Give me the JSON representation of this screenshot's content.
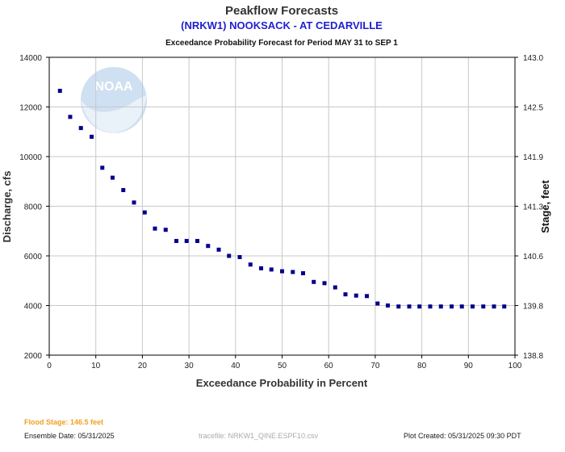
{
  "chart_data": {
    "type": "scatter",
    "title": "Peakflow Forecasts",
    "subtitle": "(NRKW1) NOOKSACK - AT CEDARVILLE",
    "period": "Exceedance Probability Forecast for Period MAY 31 to SEP 1",
    "xlabel": "Exceedance Probability in Percent",
    "ylabel": "Discharge, cfs",
    "y2label": "Stage, feet",
    "xlim": [
      0,
      100
    ],
    "ylim": [
      2000,
      14000
    ],
    "y2lim": [
      138.8,
      143.0
    ],
    "xticks": [
      0,
      10,
      20,
      30,
      40,
      50,
      60,
      70,
      80,
      90,
      100
    ],
    "yticks": [
      2000,
      4000,
      6000,
      8000,
      10000,
      12000,
      14000
    ],
    "y2ticks": [
      "138.8",
      "139.8",
      "140.6",
      "141.3",
      "141.9",
      "142.5",
      "143.0"
    ],
    "grid": true,
    "marker_color": "#00008b",
    "x": [
      2.3,
      4.5,
      6.8,
      9.1,
      11.4,
      13.6,
      15.9,
      18.2,
      20.5,
      22.7,
      25.0,
      27.3,
      29.5,
      31.8,
      34.1,
      36.4,
      38.6,
      40.9,
      43.2,
      45.5,
      47.7,
      50.0,
      52.3,
      54.5,
      56.8,
      59.1,
      61.4,
      63.6,
      65.9,
      68.2,
      70.5,
      72.7,
      75.0,
      77.3,
      79.5,
      81.8,
      84.1,
      86.4,
      88.6,
      90.9,
      93.2,
      95.5,
      97.7
    ],
    "y": [
      12650,
      11600,
      11150,
      10800,
      9550,
      9150,
      8650,
      8150,
      7750,
      7100,
      7050,
      6600,
      6600,
      6600,
      6400,
      6250,
      6000,
      5950,
      5650,
      5500,
      5450,
      5380,
      5350,
      5300,
      4950,
      4900,
      4730,
      4450,
      4400,
      4380,
      4080,
      4000,
      3960,
      3960,
      3960,
      3960,
      3960,
      3960,
      3960,
      3960,
      3960,
      3960,
      3960
    ]
  },
  "footer": {
    "flood_stage": "Flood Stage: 146.5 feet",
    "ensemble_date": "Ensemble Date: 05/31/2025",
    "tracefile": "tracefile: NRKW1_QINE.ESPF10.csv",
    "plot_created": "Plot Created: 05/31/2025 09:30 PDT"
  },
  "colors": {
    "flood_stage": "#f0a020",
    "tracefile": "#aaaaaa",
    "subtitle": "#1f1fd0",
    "grid": "#c8c8c8"
  },
  "logo": {
    "text": "NOAA",
    "icon": "noaa-logo-icon"
  }
}
